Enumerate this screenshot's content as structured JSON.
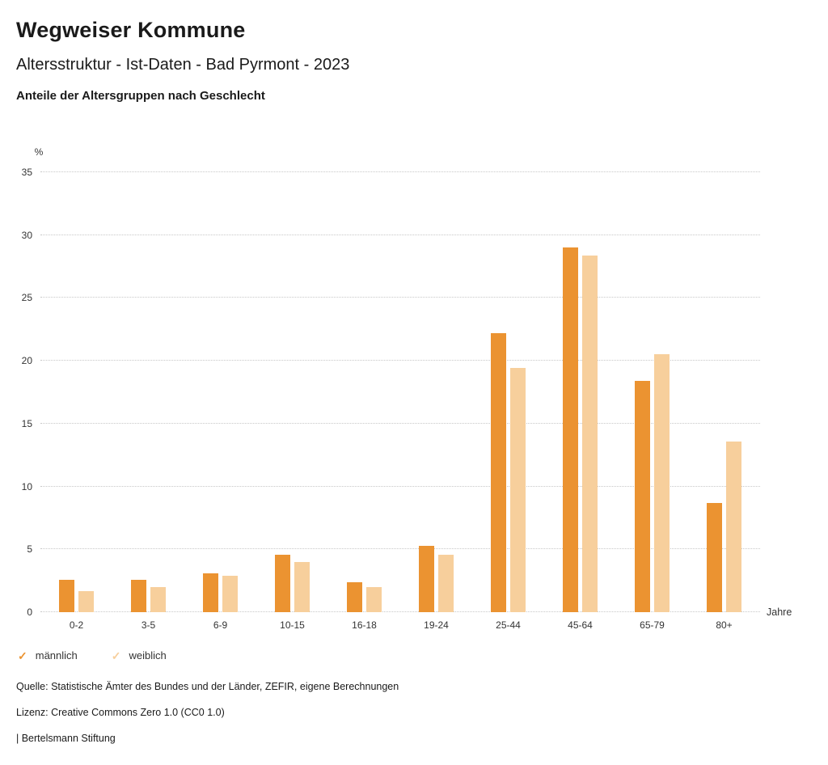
{
  "header": {
    "title": "Wegweiser Kommune",
    "subtitle": "Altersstruktur - Ist-Daten - Bad Pyrmont - 2023",
    "chart_heading": "Anteile der Altersgruppen nach Geschlecht"
  },
  "chart_data": {
    "type": "bar",
    "title": "Anteile der Altersgruppen nach Geschlecht",
    "categories": [
      "0-2",
      "3-5",
      "6-9",
      "10-15",
      "16-18",
      "19-24",
      "25-44",
      "45-64",
      "65-79",
      "80+"
    ],
    "series": [
      {
        "name": "männlich",
        "color": "#EB9331",
        "values": [
          2.6,
          2.6,
          3.1,
          4.6,
          2.4,
          5.3,
          22.2,
          29.0,
          18.4,
          8.7
        ]
      },
      {
        "name": "weiblich",
        "color": "#F7CF9C",
        "values": [
          1.7,
          2.0,
          2.9,
          4.0,
          2.0,
          4.6,
          19.4,
          28.4,
          20.5,
          13.6
        ]
      }
    ],
    "ylabel": "%",
    "xlabel": "Jahre",
    "ylim": [
      0,
      35
    ],
    "ytick_step": 5,
    "grid": true,
    "gridline_style": "dotted",
    "legend_position": "bottom-left"
  },
  "legend": {
    "items": [
      {
        "label": "männlich",
        "color": "#EB9331",
        "icon": "check-icon"
      },
      {
        "label": "weiblich",
        "color": "#F7CF9C",
        "icon": "check-icon"
      }
    ]
  },
  "footer": {
    "source": "Quelle: Statistische Ämter des Bundes und der Länder, ZEFIR, eigene Berechnungen",
    "license": "Lizenz: Creative Commons Zero 1.0 (CC0 1.0)",
    "attribution": "| Bertelsmann Stiftung"
  }
}
